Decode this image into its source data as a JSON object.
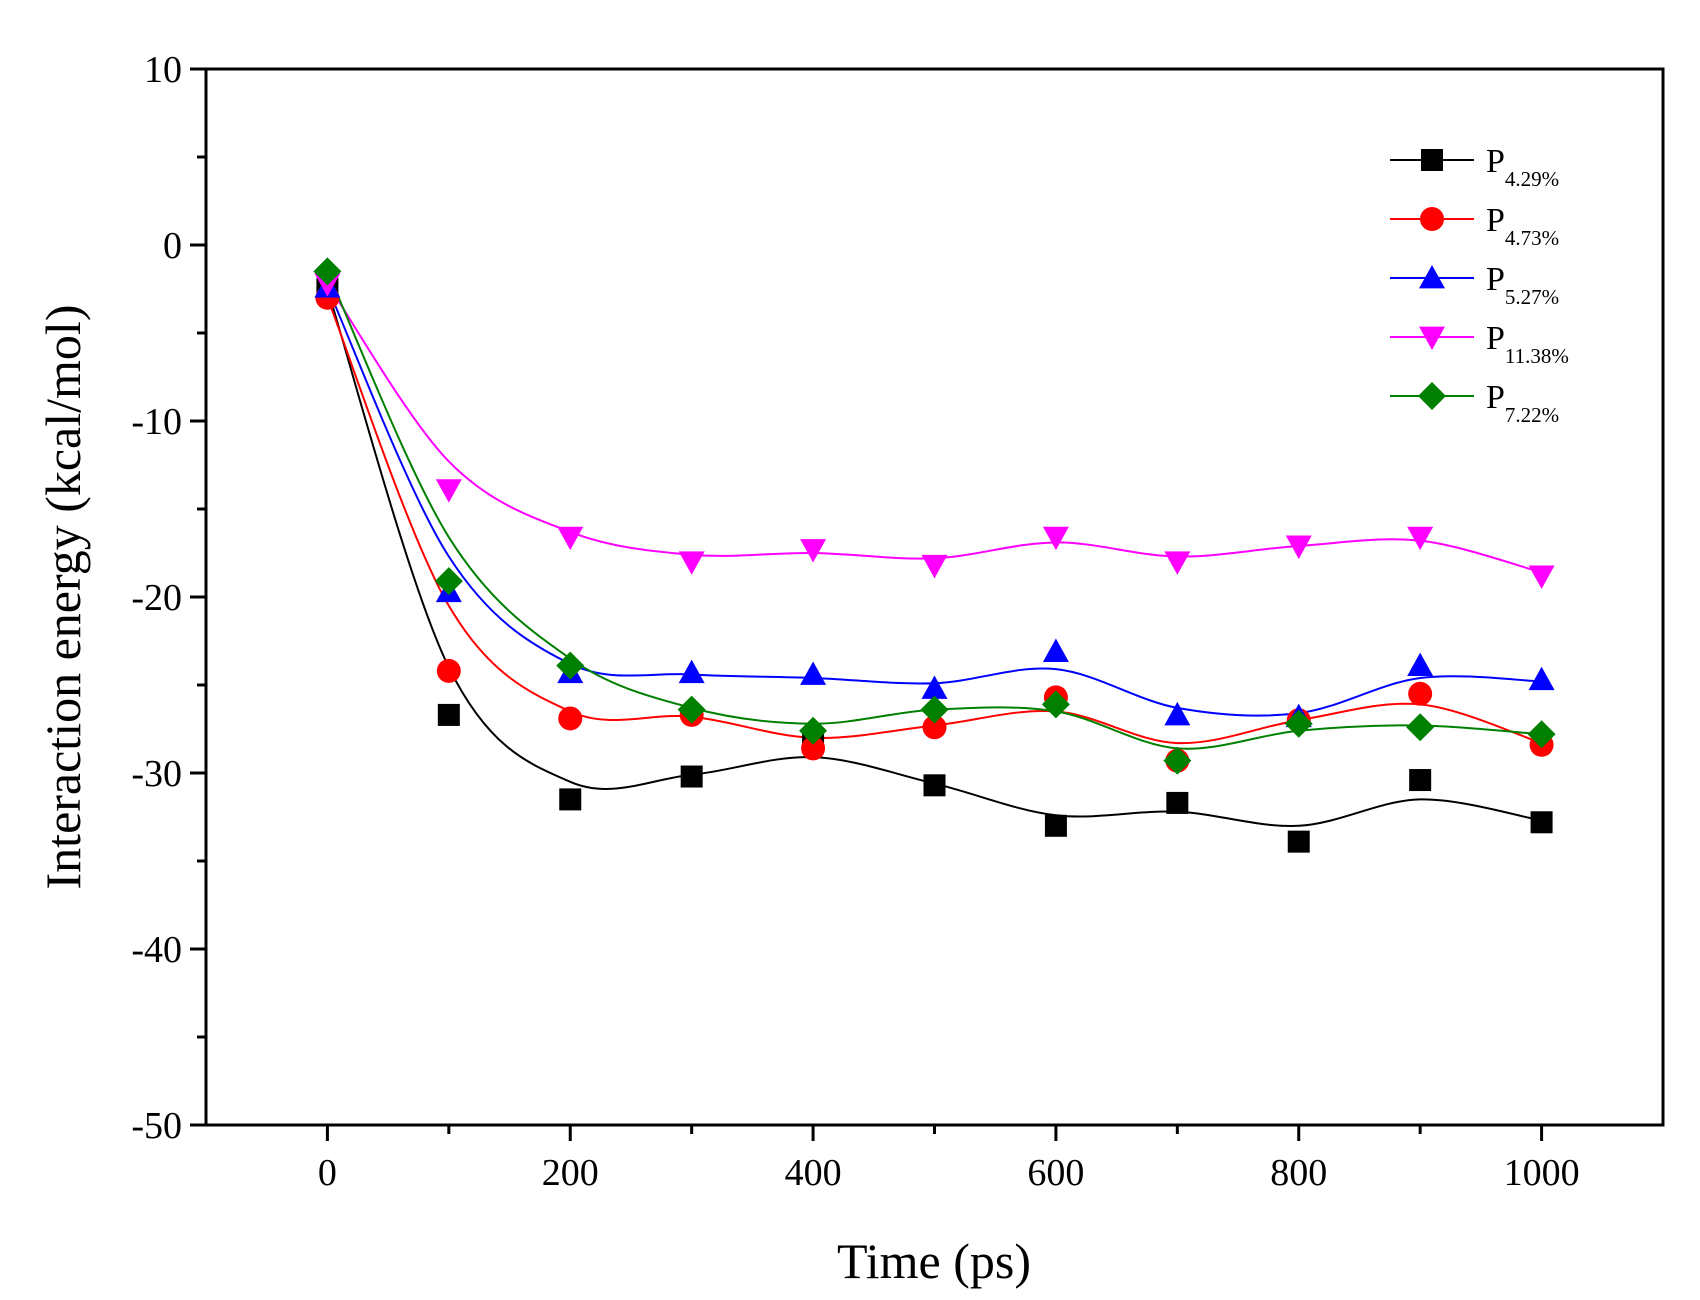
{
  "chart_data": {
    "type": "scatter",
    "title": "",
    "xlabel": "Time (ps)",
    "ylabel": "Interaction energy (kcal/mol)",
    "xlim": [
      -100,
      1100
    ],
    "ylim": [
      -50,
      10
    ],
    "xticks": [
      0,
      200,
      400,
      600,
      800,
      1000
    ],
    "yticks": [
      10,
      0,
      -10,
      -20,
      -30,
      -40,
      -50
    ],
    "grid": false,
    "legend_position": "top-right",
    "x": [
      0,
      100,
      200,
      300,
      400,
      500,
      600,
      700,
      800,
      900,
      1000
    ],
    "series": [
      {
        "legend_main": "P",
        "legend_sub": "4.29%",
        "color": "#000000",
        "marker": "square",
        "values": [
          -2.5,
          -26.7,
          -31.5,
          -30.2,
          -28.2,
          -30.7,
          -33.0,
          -31.7,
          -33.9,
          -30.4,
          -32.8
        ]
      },
      {
        "legend_main": "P",
        "legend_sub": "4.73%",
        "color": "#ff0000",
        "marker": "circle",
        "values": [
          -3.0,
          -24.2,
          -26.9,
          -26.7,
          -28.6,
          -27.4,
          -25.7,
          -29.3,
          -27.0,
          -25.5,
          -28.4
        ]
      },
      {
        "legend_main": "P",
        "legend_sub": "5.27%",
        "color": "#0000ff",
        "marker": "triangle-up",
        "values": [
          -2.4,
          -19.7,
          -24.3,
          -24.3,
          -24.4,
          -25.2,
          -23.1,
          -26.7,
          -26.8,
          -23.9,
          -24.7
        ]
      },
      {
        "legend_main": "P",
        "legend_sub": "11.38%",
        "color": "#ff00ff",
        "marker": "triangle-down",
        "values": [
          -2.2,
          -13.9,
          -16.6,
          -18.0,
          -17.3,
          -18.2,
          -16.6,
          -18.0,
          -17.1,
          -16.6,
          -18.8
        ]
      },
      {
        "legend_main": "P",
        "legend_sub": "7.22%",
        "color": "#008000",
        "marker": "diamond",
        "values": [
          -1.5,
          -19.1,
          -23.9,
          -26.4,
          -27.6,
          -26.4,
          -26.1,
          -29.3,
          -27.2,
          -27.4,
          -27.8
        ]
      }
    ],
    "fit_lines": [
      {
        "color": "#000000",
        "values": [
          -2.5,
          -24.0,
          -30.5,
          -30.1,
          -29.1,
          -30.6,
          -32.4,
          -32.2,
          -33.0,
          -31.5,
          -32.7
        ]
      },
      {
        "color": "#ff0000",
        "values": [
          -3.0,
          -20.5,
          -26.5,
          -26.8,
          -28.0,
          -27.3,
          -26.5,
          -28.3,
          -27.0,
          -26.1,
          -28.3
        ]
      },
      {
        "color": "#0000ff",
        "values": [
          -2.4,
          -17.7,
          -23.8,
          -24.4,
          -24.6,
          -24.9,
          -24.1,
          -26.3,
          -26.6,
          -24.6,
          -24.8
        ]
      },
      {
        "color": "#ff00ff",
        "values": [
          -2.2,
          -12.3,
          -16.3,
          -17.6,
          -17.5,
          -17.8,
          -16.9,
          -17.7,
          -17.1,
          -16.8,
          -18.6
        ]
      },
      {
        "color": "#008000",
        "values": [
          -1.5,
          -16.6,
          -23.5,
          -26.3,
          -27.2,
          -26.4,
          -26.5,
          -28.6,
          -27.6,
          -27.3,
          -27.8
        ]
      }
    ]
  }
}
